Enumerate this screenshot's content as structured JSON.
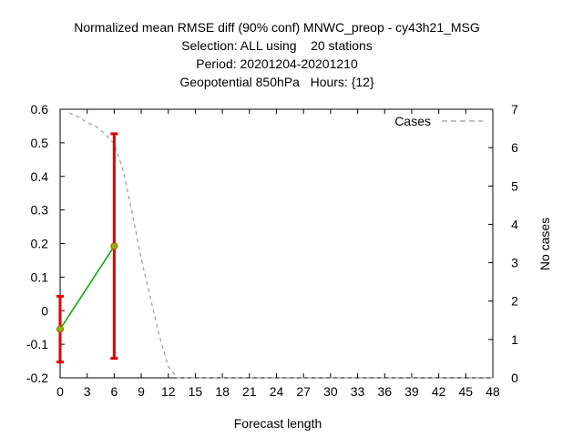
{
  "chart_data": {
    "type": "line",
    "title_lines": [
      "Normalized mean RMSE diff (90% conf) MNWC_preop - cy43h21_MSG",
      "Selection: ALL using    20 stations",
      "Period: 20201204-20201210",
      "Geopotential 850hPa   Hours: {12}"
    ],
    "xlabel": "Forecast length",
    "ylabel": "",
    "y2label": "No cases",
    "xlim": [
      0,
      48
    ],
    "ylim": [
      -0.2,
      0.6
    ],
    "y2lim": [
      0,
      7
    ],
    "x_ticks": [
      0,
      3,
      6,
      9,
      12,
      15,
      18,
      21,
      24,
      27,
      30,
      33,
      36,
      39,
      42,
      45,
      48
    ],
    "y_ticks": [
      "-0.2",
      "-0.1",
      "0",
      "0.1",
      "0.2",
      "0.3",
      "0.4",
      "0.5",
      "0.6"
    ],
    "y2_ticks": [
      0,
      1,
      2,
      3,
      4,
      5,
      6,
      7
    ],
    "grid": false,
    "legend_position": "top-right",
    "series": [
      {
        "color": "#00aa00",
        "x": [
          0,
          6
        ],
        "y": [
          -0.055,
          0.192
        ],
        "error_low": [
          -0.153,
          -0.142
        ],
        "error_high": [
          0.043,
          0.527
        ],
        "error_color": "#dd0000"
      },
      {
        "name": "Cases",
        "axis": "right",
        "style": "dashed",
        "color": "#999999",
        "x": [
          1,
          2,
          3,
          4,
          5,
          6,
          7,
          8,
          9,
          10,
          11,
          12,
          13,
          48
        ],
        "y": [
          6.9,
          6.8,
          6.65,
          6.55,
          6.35,
          6.1,
          5.4,
          4.3,
          3.1,
          2.1,
          1.1,
          0.3,
          0,
          0
        ]
      }
    ]
  }
}
